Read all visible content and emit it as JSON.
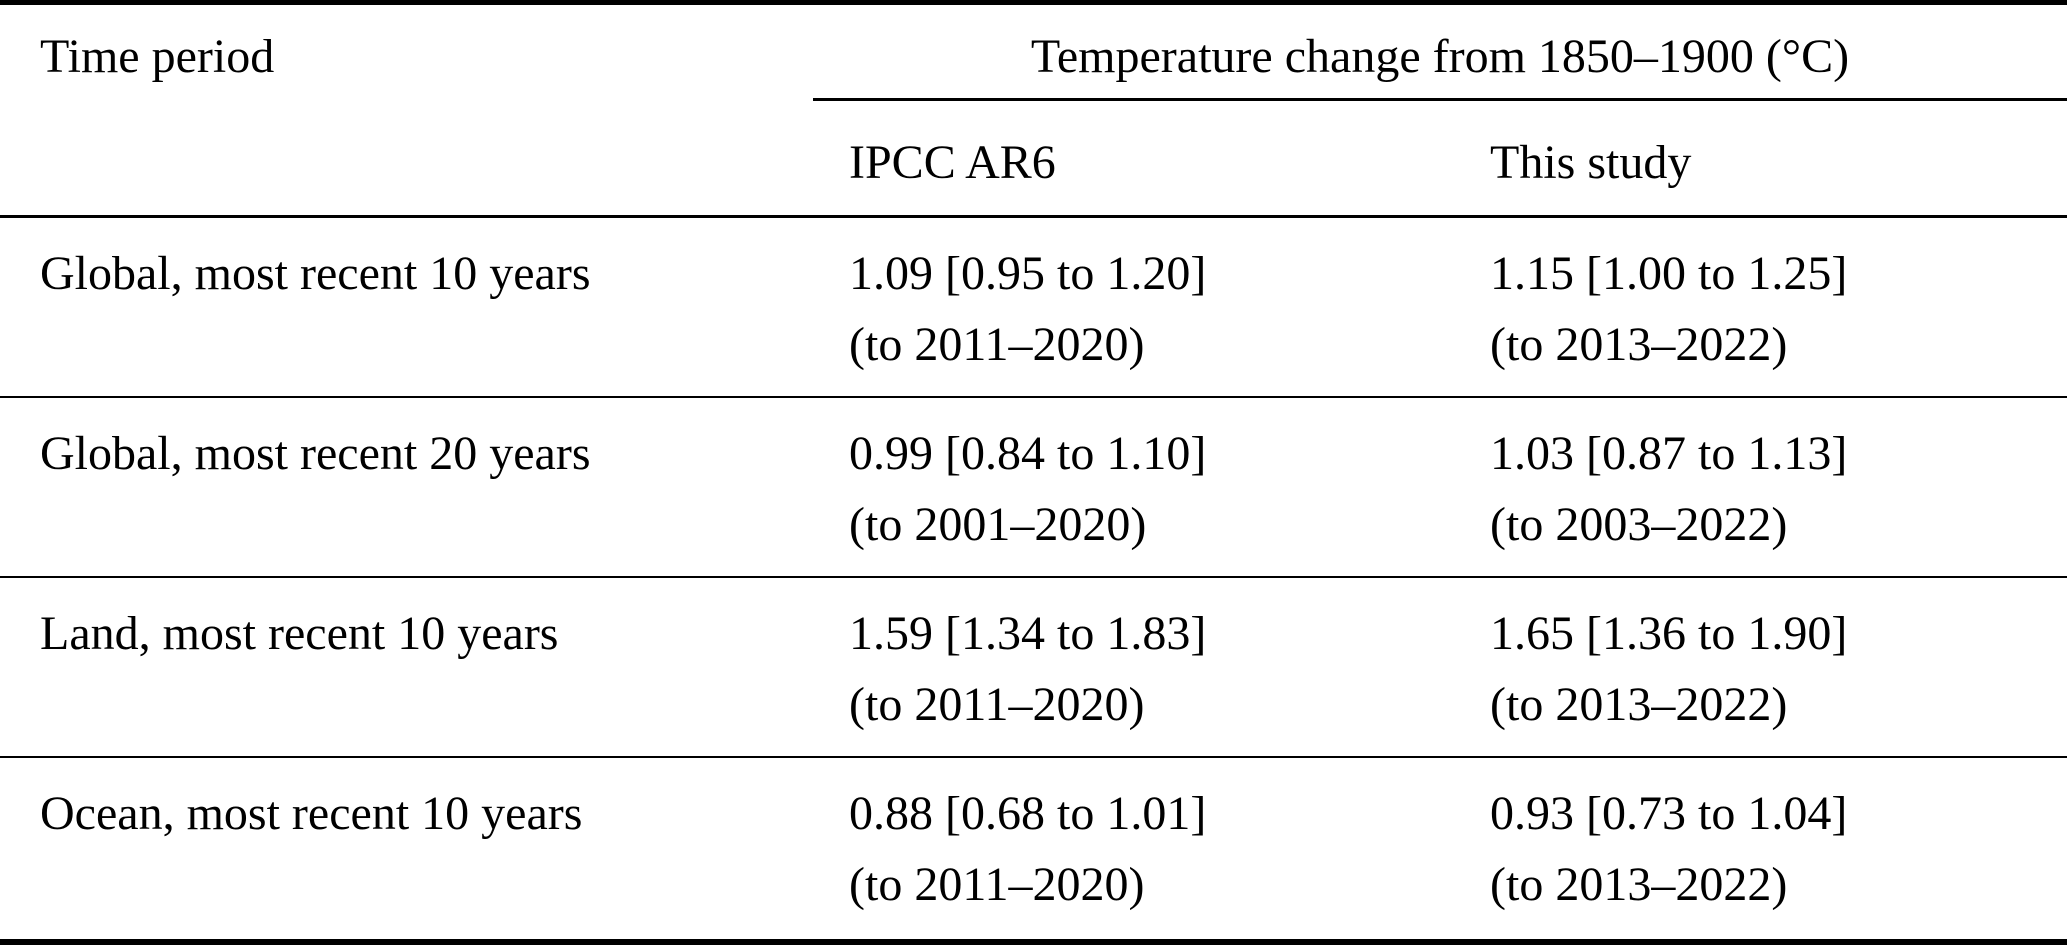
{
  "table": {
    "corner_header": "Time period",
    "group_header": "Temperature change from 1850–1900 (°C)",
    "columns": {
      "ipcc": "IPCC AR6",
      "study": "This study"
    },
    "rows": [
      {
        "period": "Global, most recent 10 years",
        "ipcc": {
          "estimate": "1.09 [0.95 to 1.20]",
          "window": "(to 2011–2020)"
        },
        "study": {
          "estimate": "1.15 [1.00 to 1.25]",
          "window": "(to 2013–2022)"
        }
      },
      {
        "period": "Global, most recent 20 years",
        "ipcc": {
          "estimate": "0.99 [0.84 to 1.10]",
          "window": "(to 2001–2020)"
        },
        "study": {
          "estimate": "1.03 [0.87 to 1.13]",
          "window": "(to 2003–2022)"
        }
      },
      {
        "period": "Land, most recent 10 years",
        "ipcc": {
          "estimate": "1.59 [1.34 to 1.83]",
          "window": "(to 2011–2020)"
        },
        "study": {
          "estimate": "1.65 [1.36 to 1.90]",
          "window": "(to 2013–2022)"
        }
      },
      {
        "period": "Ocean, most recent 10 years",
        "ipcc": {
          "estimate": "0.88 [0.68 to 1.01]",
          "window": "(to 2011–2020)"
        },
        "study": {
          "estimate": "0.93 [0.73 to 1.04]",
          "window": "(to 2013–2022)"
        }
      }
    ],
    "colors": {
      "text": "#000000",
      "background": "#ffffff",
      "rule": "#000000"
    }
  }
}
